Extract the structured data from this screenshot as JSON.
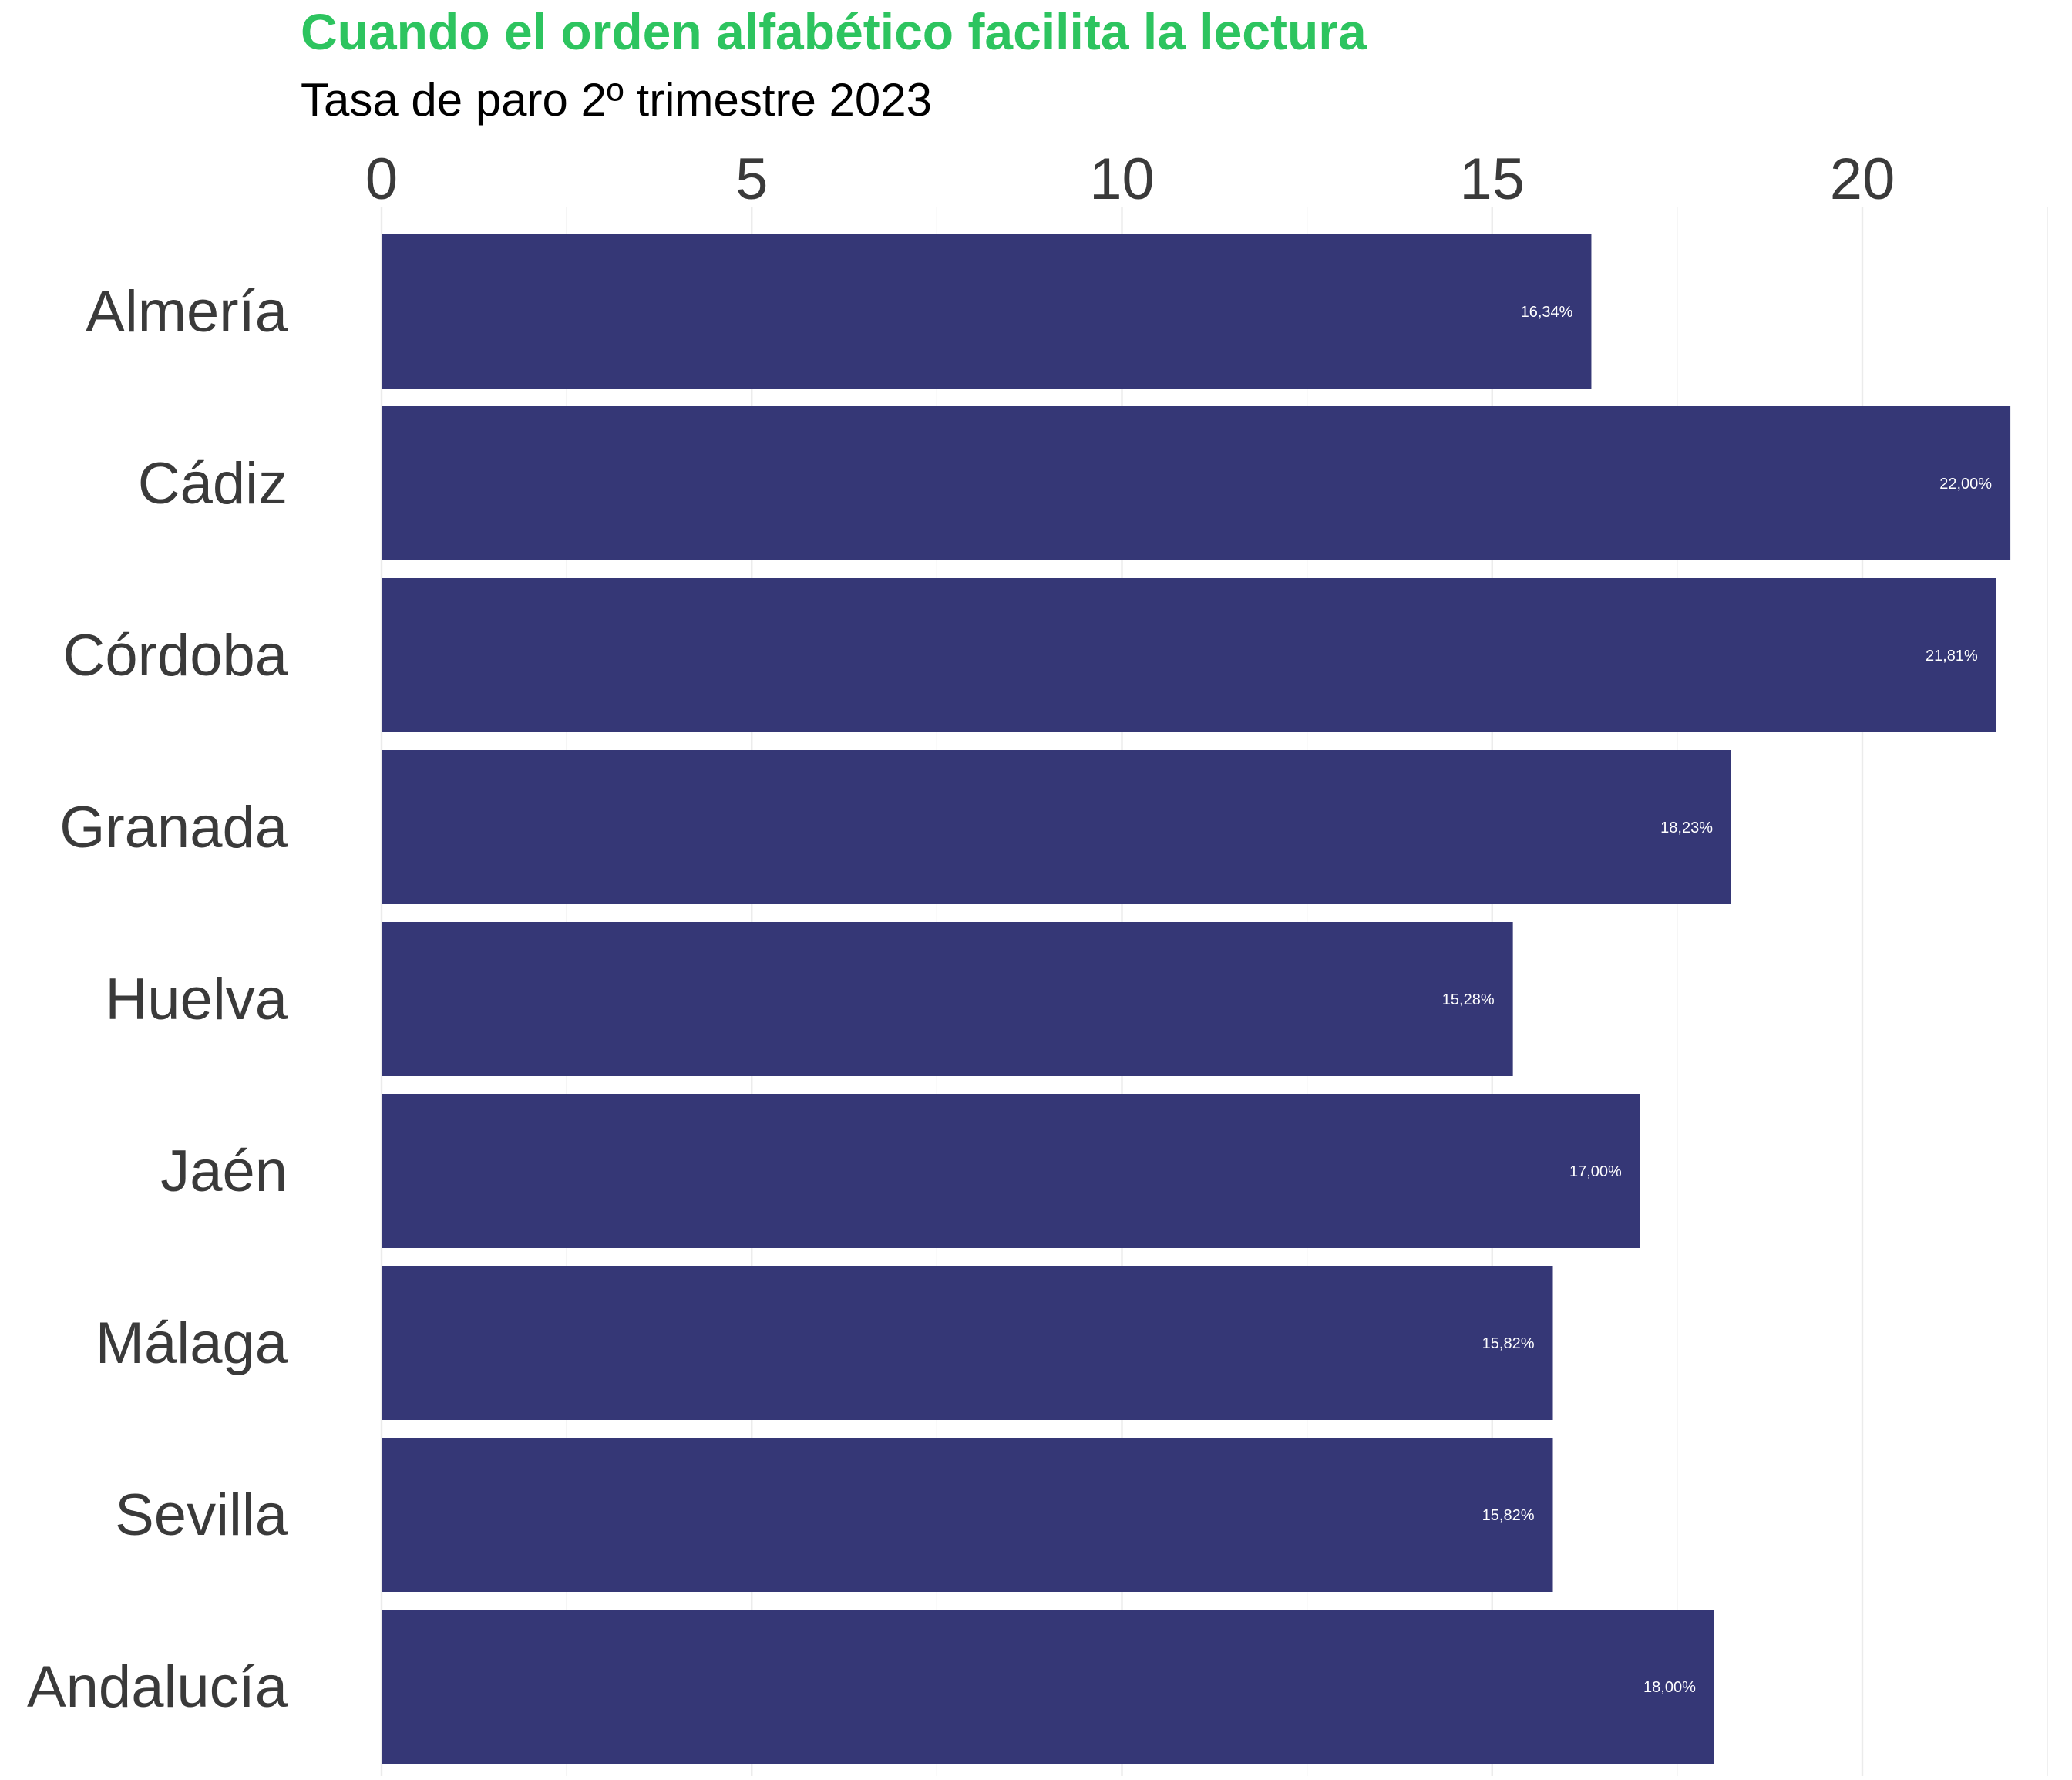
{
  "chart_data": {
    "type": "bar",
    "orientation": "horizontal",
    "title": "Cuando el orden alfabético facilita la lectura",
    "subtitle": "Tasa de paro 2º trimestre 2023",
    "categories": [
      "Almería",
      "Cádiz",
      "Córdoba",
      "Granada",
      "Huelva",
      "Jaén",
      "Málaga",
      "Sevilla",
      "Andalucía"
    ],
    "values": [
      16.34,
      22.0,
      21.81,
      18.23,
      15.28,
      17.0,
      15.82,
      15.82,
      18.0
    ],
    "data_labels": [
      "16,34%",
      "22,00%",
      "21,81%",
      "18,23%",
      "15,28%",
      "17,00%",
      "15,82%",
      "15,82%",
      "18,00%"
    ],
    "xlabel": "",
    "ylabel": "",
    "xlim": [
      0,
      22.5
    ],
    "x_ticks": [
      0,
      5,
      10,
      15,
      20
    ],
    "x_tick_labels": [
      "0",
      "5",
      "10",
      "15",
      "20"
    ],
    "x_axis_position": "top",
    "grid": true,
    "legend": "none",
    "colors": {
      "title": "#2dc45f",
      "subtitle": "#000000",
      "bar": "#353776",
      "data_label": "#ffffff",
      "axis_text": "#3a3a3a",
      "grid": "#ebebeb"
    }
  }
}
